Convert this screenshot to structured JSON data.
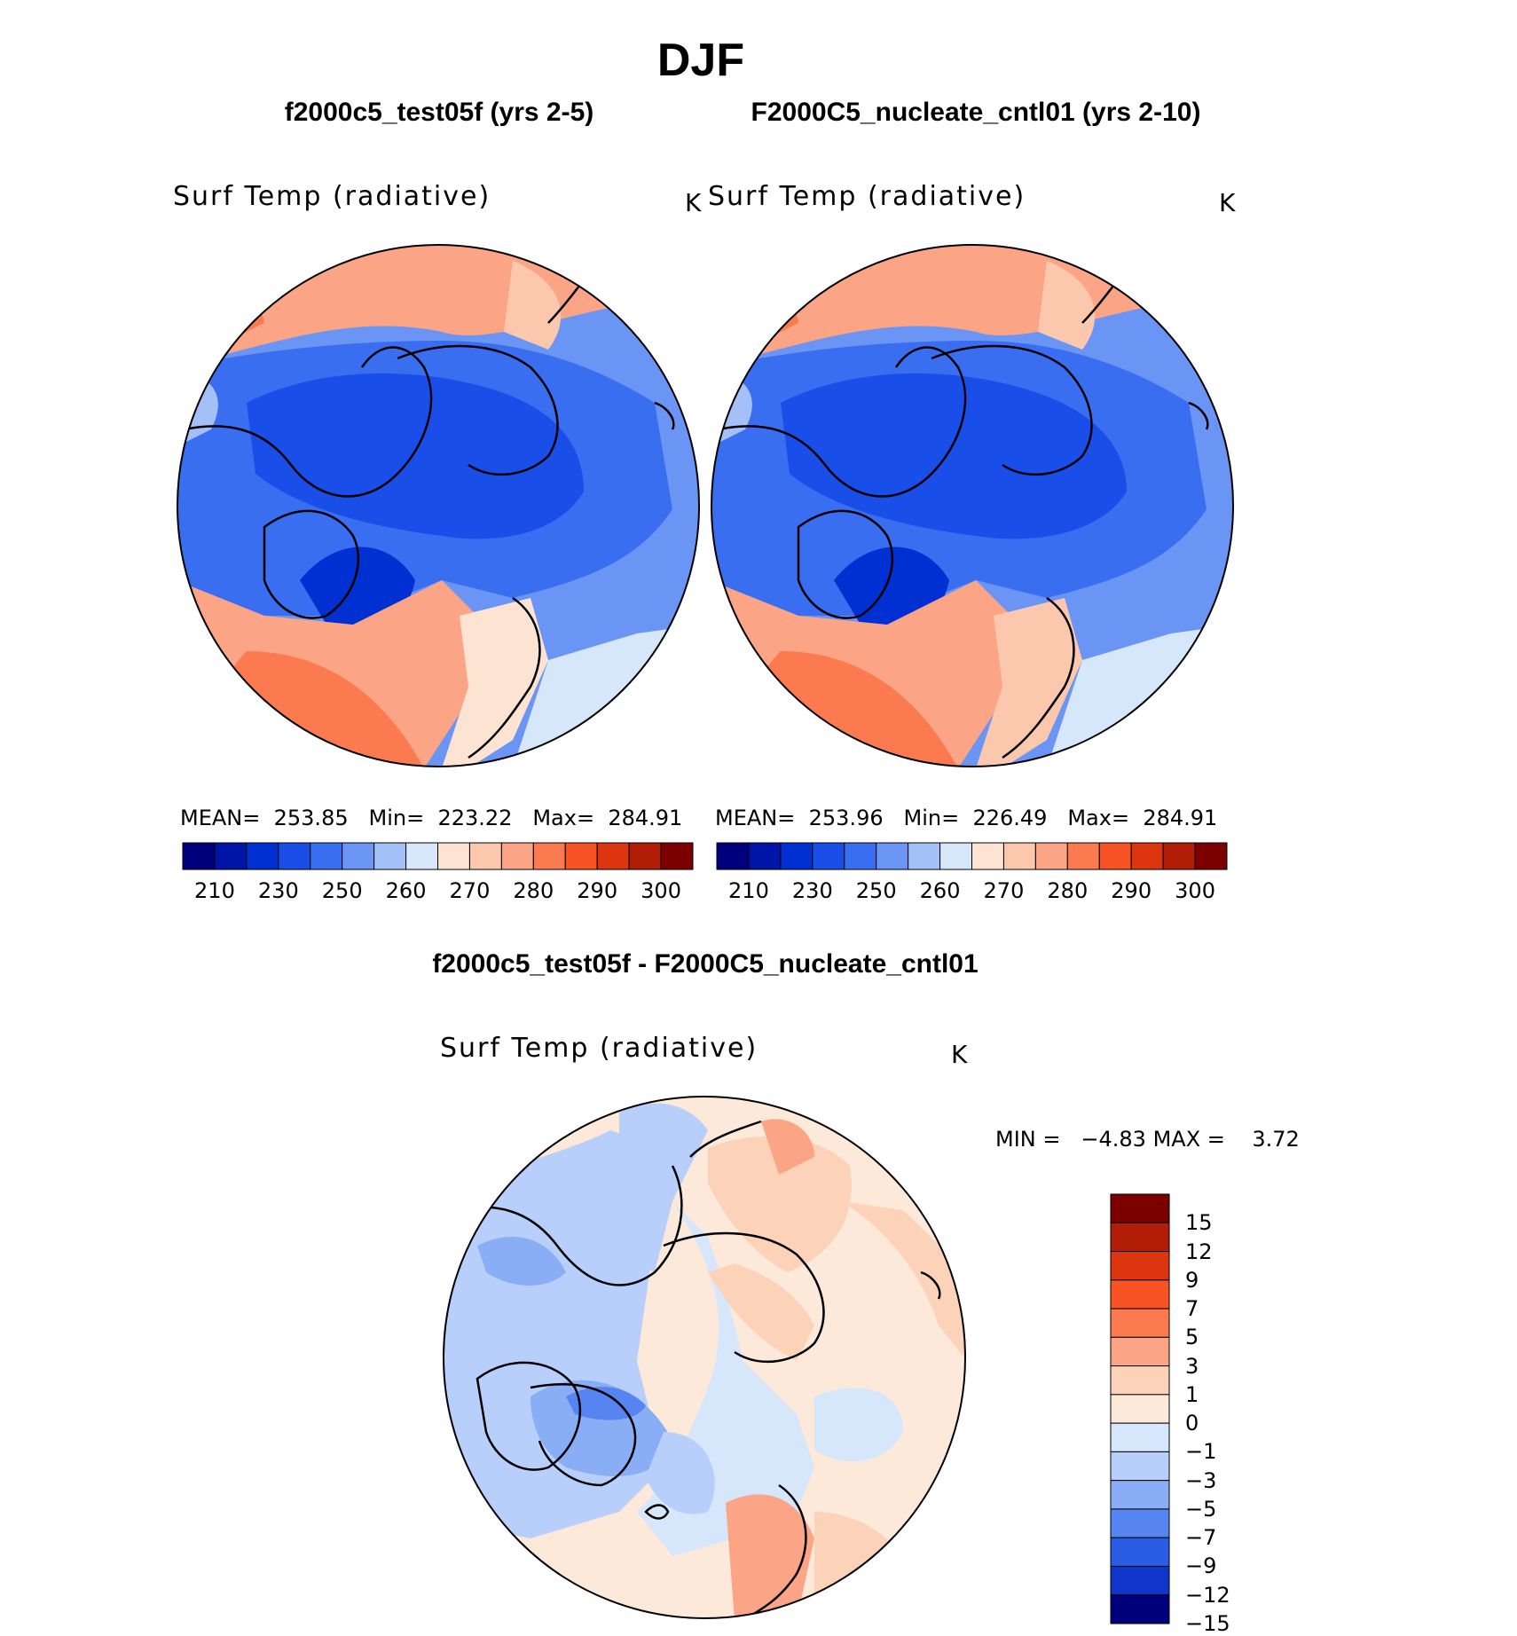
{
  "title": "DJF",
  "panels": [
    {
      "case_title": "f2000c5_test05f (yrs 2-5)",
      "variable": "Surf Temp (radiative)",
      "units": "K",
      "stats": {
        "mean": "253.85",
        "min": "223.22",
        "max": "284.91"
      }
    },
    {
      "case_title": "F2000C5_nucleate_cntl01 (yrs 2-10)",
      "variable": "Surf Temp (radiative)",
      "units": "K",
      "stats": {
        "mean": "253.96",
        "min": "226.49",
        "max": "284.91"
      }
    }
  ],
  "stat_labels": {
    "mean": "MEAN=",
    "min": "Min=",
    "max": "Max="
  },
  "abs_colorbar": {
    "colors": [
      "#00007d",
      "#0014a8",
      "#0030d2",
      "#1a4ee8",
      "#3a6ef0",
      "#6a95f5",
      "#a3c0f8",
      "#d6e6fb",
      "#fde4d2",
      "#fcc8ad",
      "#fba486",
      "#fb7a50",
      "#f85325",
      "#dc3510",
      "#b21d08",
      "#7c0000"
    ],
    "ticks": [
      "210",
      "230",
      "250",
      "260",
      "270",
      "280",
      "290",
      "300"
    ]
  },
  "diff_panel": {
    "title": "f2000c5_test05f - F2000C5_nucleate_cntl01",
    "variable": "Surf Temp (radiative)",
    "units": "K",
    "min_label": "MIN =",
    "min_value": "−4.83",
    "max_label": "MAX =",
    "max_value": "3.72"
  },
  "diff_colorbar": {
    "colors": [
      "#7c0000",
      "#b21d08",
      "#dc3510",
      "#f85325",
      "#fb7a50",
      "#fba486",
      "#fcd2b8",
      "#fde9da",
      "#d6e6fb",
      "#b7cffa",
      "#8aaef6",
      "#5684f0",
      "#2a5ce6",
      "#1035c8",
      "#00007d"
    ],
    "ticks": [
      "15",
      "12",
      "9",
      "7",
      "5",
      "3",
      "1",
      "0",
      "−1",
      "−3",
      "−5",
      "−7",
      "−9",
      "−12",
      "−15"
    ]
  }
}
